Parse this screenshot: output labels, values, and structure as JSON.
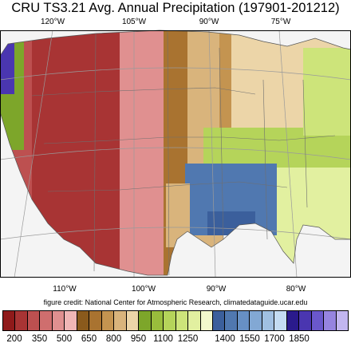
{
  "title": "CRU TS3.21 Avg. Annual Precipitation (197901-201212)",
  "top_ticks": [
    "120°W",
    "105°W",
    "90°W",
    "75°W"
  ],
  "bottom_ticks": [
    "110°W",
    "100°W",
    "90°W",
    "80°W"
  ],
  "credit": "figure credit: National Center for Atmospheric Research, climatedataguide.ucar.edu",
  "colorbar": {
    "colors": [
      "#8f1a1a",
      "#a83434",
      "#bd5050",
      "#cf6e6e",
      "#e09090",
      "#f0b6b6",
      "#8a5a1c",
      "#a97330",
      "#c49450",
      "#d9b47c",
      "#ecd5a8",
      "#7da62a",
      "#99bd3c",
      "#b5d45a",
      "#cde47a",
      "#e2f0a0",
      "#f2f8cc",
      "#3b5f9c",
      "#5078b0",
      "#6790c4",
      "#82a8d4",
      "#a0c0e2",
      "#c4dcf2",
      "#2a1a8c",
      "#4a36b0",
      "#6a58cc",
      "#9684e0",
      "#c2b6f0"
    ],
    "labels": [
      "200",
      "350",
      "500",
      "650",
      "800",
      "950",
      "1100",
      "1250",
      "1400",
      "1550",
      "1700",
      "1850"
    ]
  },
  "map": {
    "ocean_color": "#ffffff",
    "land_default": "#cf6e6e",
    "state_line_color": "#7a7a7a",
    "graticule_color": "#9a9a9a"
  }
}
